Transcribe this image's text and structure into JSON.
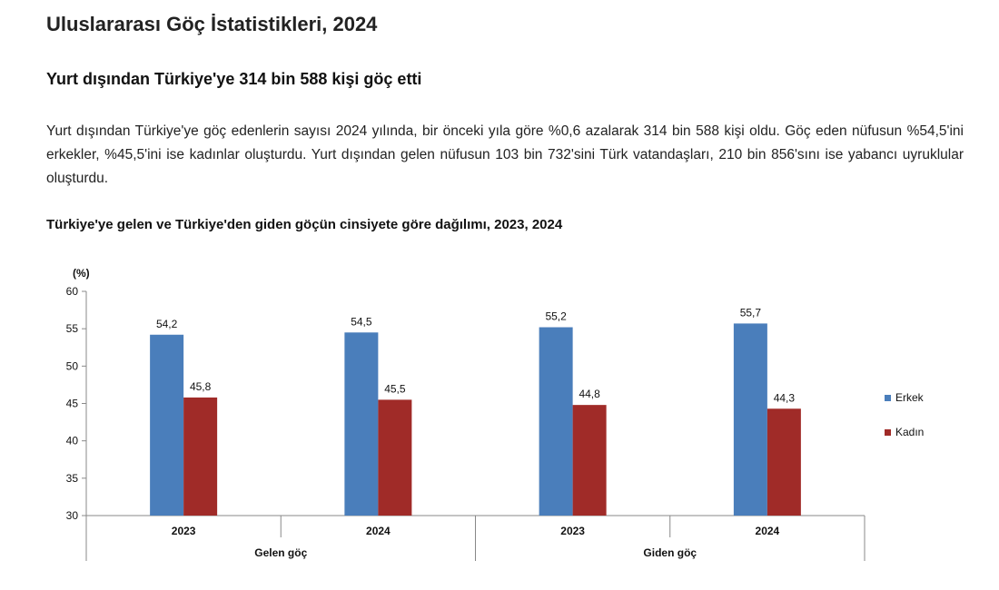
{
  "page": {
    "title": "Uluslararası Göç İstatistikleri, 2024",
    "headline": "Yurt dışından Türkiye'ye 314 bin 588 kişi göç etti",
    "body": "Yurt dışından Türkiye'ye göç edenlerin sayısı 2024 yılında, bir önceki yıla göre %0,6 azalarak 314 bin 588 kişi oldu. Göç eden nüfusun %54,5'ini erkekler, %45,5'ini ise kadınlar oluşturdu. Yurt dışından gelen nüfusun 103 bin 732'sini Türk vatandaşları, 210 bin 856'sını ise yabancı uyruklular oluşturdu.",
    "chart_heading": "Türkiye'ye gelen ve Türkiye'den giden göçün cinsiyete göre dağılımı, 2023, 2024"
  },
  "chart_data": {
    "type": "bar",
    "title": "Türkiye'ye gelen ve Türkiye'den giden göçün cinsiyete göre dağılımı, 2023, 2024",
    "ylabel": "(%)",
    "xlabel": "",
    "ylim": [
      30,
      60
    ],
    "yticks": [
      30,
      35,
      40,
      45,
      50,
      55,
      60
    ],
    "groups": [
      "Gelen göç",
      "Giden göç"
    ],
    "categories": [
      "2023",
      "2024",
      "2023",
      "2024"
    ],
    "category_group": [
      0,
      0,
      1,
      1
    ],
    "series": [
      {
        "name": "Erkek",
        "values": [
          54.2,
          54.5,
          55.2,
          55.7
        ],
        "labels": [
          "54,2",
          "54,5",
          "55,2",
          "55,7"
        ],
        "color": "#4a7ebb"
      },
      {
        "name": "Kadın",
        "values": [
          45.8,
          45.5,
          44.8,
          44.3
        ],
        "labels": [
          "45,8",
          "45,5",
          "44,8",
          "44,3"
        ],
        "color": "#a02b28"
      }
    ],
    "legend_position": "right",
    "grid": false
  }
}
